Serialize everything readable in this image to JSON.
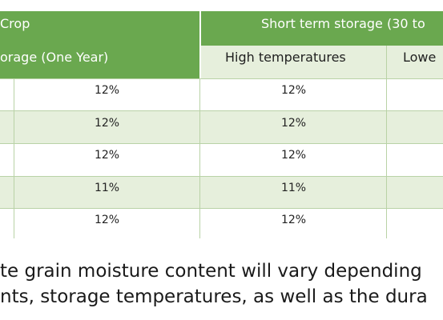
{
  "table": {
    "header_row1": {
      "crop": "Crop",
      "short_term": "Short term storage (30 to"
    },
    "header_row2": {
      "long_term": "orage (One Year)",
      "high_temp": "High temperatures",
      "lower": "Lowe"
    },
    "rows": [
      {
        "long_term": "12%",
        "high_temp": "12%"
      },
      {
        "long_term": "12%",
        "high_temp": "12%"
      },
      {
        "long_term": "12%",
        "high_temp": "12%"
      },
      {
        "long_term": "11%",
        "high_temp": "11%"
      },
      {
        "long_term": "12%",
        "high_temp": "12%"
      }
    ]
  },
  "footnote": {
    "line1": "te grain moisture content will vary depending",
    "line2": "nts, storage temperatures, as well as the dura"
  },
  "colors": {
    "header_green": "#6aa84f",
    "row_light": "#e6efdc",
    "grid": "#b9d2a6"
  }
}
